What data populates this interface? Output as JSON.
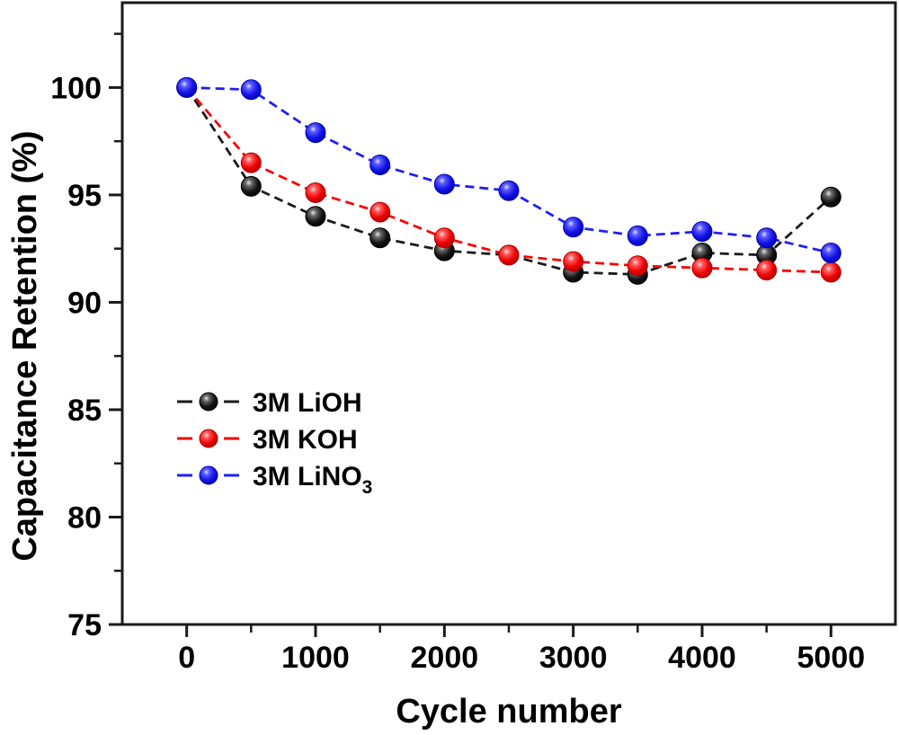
{
  "figure": {
    "background": "#ffffff",
    "frame_color": "#1a1a1a"
  },
  "chart_data": {
    "type": "line",
    "title": "",
    "xlabel": "Cycle number",
    "ylabel": "Capacitance Retention (%)",
    "grid": false,
    "line_style": "dashed",
    "marker": "3d-ball",
    "x": [
      0,
      500,
      1000,
      1500,
      2000,
      2500,
      3000,
      3500,
      4000,
      4500,
      5000
    ],
    "series": [
      {
        "id": "lioh",
        "name": "3M LiOH",
        "color": "#1a1a1a",
        "rim_color": "#000000",
        "values": [
          100.0,
          95.4,
          94.0,
          93.0,
          92.4,
          92.2,
          91.4,
          91.3,
          92.3,
          92.2,
          94.9
        ]
      },
      {
        "id": "koh",
        "name": "3M KOH",
        "color": "#f50505",
        "rim_color": "#b40000",
        "values": [
          100.0,
          96.5,
          95.1,
          94.2,
          93.0,
          92.2,
          91.9,
          91.7,
          91.6,
          91.5,
          91.4
        ]
      },
      {
        "id": "lino3",
        "name": "3M LiNO3",
        "name_main": "3M LiNO",
        "name_sub": "3",
        "color": "#2020f0",
        "rim_color": "#0000b4",
        "values": [
          100.0,
          99.9,
          97.9,
          96.4,
          95.5,
          95.2,
          93.5,
          93.1,
          93.3,
          93.0,
          92.3
        ]
      }
    ],
    "axes": {
      "x": {
        "label": "Cycle number",
        "min": -500,
        "max": 5500,
        "major_ticks": [
          0,
          1000,
          2000,
          3000,
          4000,
          5000
        ],
        "minor_ticks": [
          500,
          1500,
          2500,
          3500,
          4500
        ],
        "tick_labels": [
          "0",
          "1000",
          "2000",
          "3000",
          "4000",
          "5000"
        ]
      },
      "y": {
        "label": "Capacitance Retention (%)",
        "min": 75,
        "max": 103.95,
        "major_ticks": [
          75,
          80,
          85,
          90,
          95,
          100
        ],
        "minor_ticks": [
          77.5,
          82.5,
          87.5,
          92.5,
          97.5,
          102.5
        ],
        "tick_labels": [
          "75",
          "80",
          "85",
          "90",
          "95",
          "100"
        ]
      },
      "legend": {
        "position": "inside-left-middle",
        "entries": [
          "3M LiOH",
          "3M KOH",
          "3M LiNO3"
        ]
      }
    }
  }
}
